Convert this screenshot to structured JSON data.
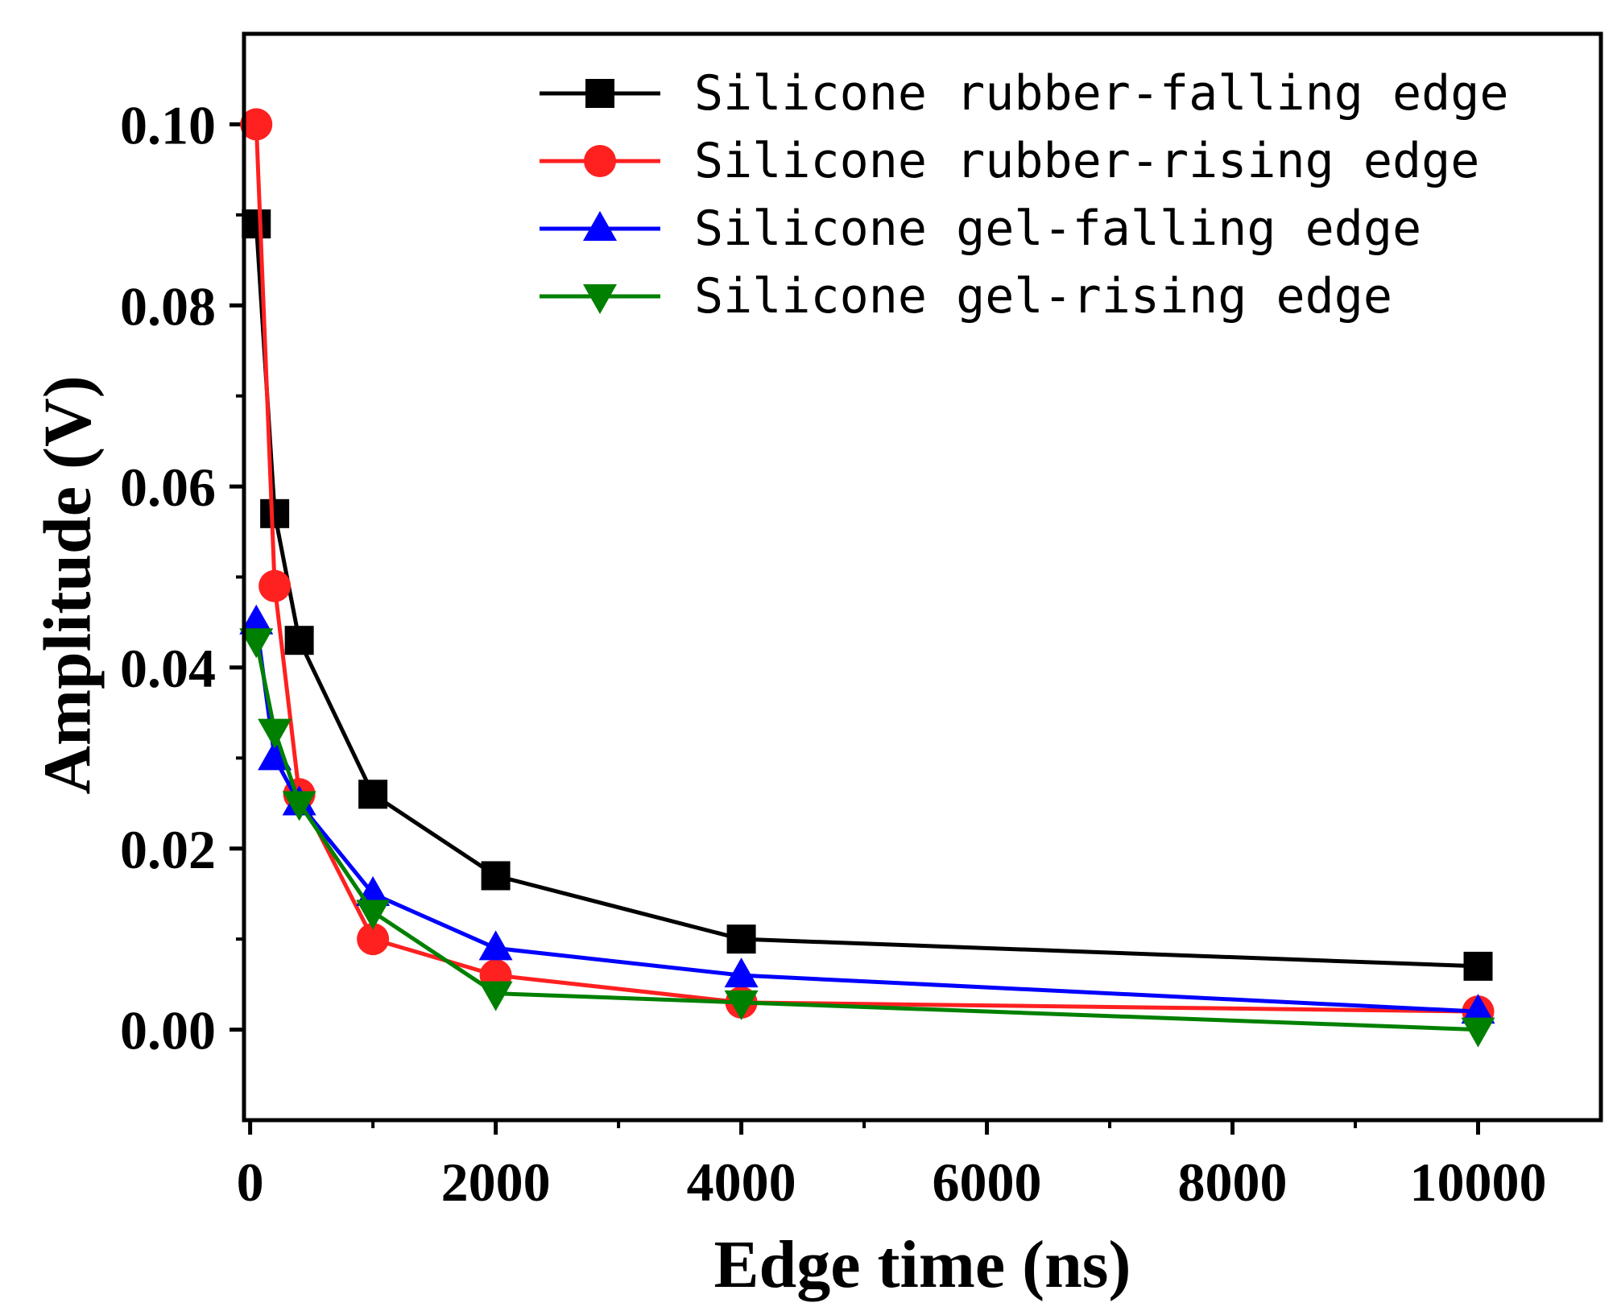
{
  "chart_data": {
    "type": "line",
    "title": "",
    "xlabel": "Edge time (ns)",
    "ylabel": "Amplitude (V)",
    "xlim": [
      -50,
      11000
    ],
    "ylim": [
      -0.01,
      0.11
    ],
    "xticks": [
      0,
      2000,
      4000,
      6000,
      8000,
      10000
    ],
    "xtick_labels": [
      "0",
      "2000",
      "4000",
      "6000",
      "8000",
      "10000"
    ],
    "yticks": [
      0.0,
      0.02,
      0.04,
      0.06,
      0.08,
      0.1
    ],
    "ytick_labels": [
      "0.00",
      "0.02",
      "0.04",
      "0.06",
      "0.08",
      "0.10"
    ],
    "x_minor_step": 1000,
    "y_minor_step": 0.01,
    "grid": false,
    "legend_position": "top-right",
    "series": [
      {
        "name": "Silicone rubber-falling edge",
        "color": "#000000",
        "marker": "square",
        "x": [
          50,
          200,
          400,
          1000,
          2000,
          4000,
          10000
        ],
        "y": [
          0.089,
          0.057,
          0.043,
          0.026,
          0.017,
          0.01,
          0.007
        ]
      },
      {
        "name": "Silicone rubber-rising edge",
        "color": "#ff2020",
        "marker": "circle",
        "x": [
          50,
          200,
          400,
          1000,
          2000,
          4000,
          10000
        ],
        "y": [
          0.1,
          0.049,
          0.026,
          0.01,
          0.006,
          0.003,
          0.002
        ]
      },
      {
        "name": "Silicone gel-falling edge",
        "color": "#0000ff",
        "marker": "triangle-up",
        "x": [
          50,
          200,
          400,
          1000,
          2000,
          4000,
          10000
        ],
        "y": [
          0.045,
          0.03,
          0.025,
          0.015,
          0.009,
          0.006,
          0.002
        ]
      },
      {
        "name": "Silicone gel-rising edge",
        "color": "#008000",
        "marker": "triangle-down",
        "x": [
          50,
          200,
          400,
          1000,
          2000,
          4000,
          10000
        ],
        "y": [
          0.043,
          0.033,
          0.025,
          0.013,
          0.004,
          0.003,
          0.0
        ]
      }
    ]
  }
}
